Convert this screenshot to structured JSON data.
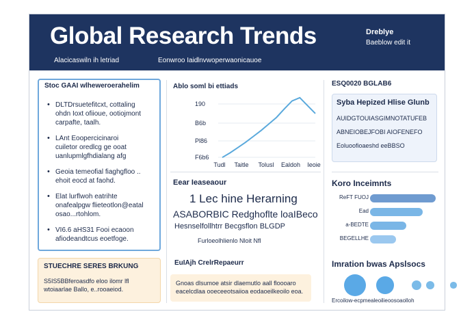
{
  "header": {
    "title": "Global Research Trends",
    "badge_top": "Dreblye",
    "badge_bottom": "Baeblow edit it",
    "sub": [
      "Alacicaswiln ih letriad",
      "Eonwroo Iaid",
      "lnvwoperwaonicauoe"
    ]
  },
  "left_card": {
    "title": "Stoc GAAI wlheweroerahelim",
    "bullets": [
      [
        "DLTDrsuetefitcxt, cottaling",
        "ohdn Ioxt ofiioue, ootiojmont",
        "carpafte, taalh."
      ],
      [
        "LAnt Eoopercicinaroi",
        "cuiletor oredlcg ge ooat",
        "uanlupmlgfhdialang afg"
      ],
      [
        "Geoia temeofial fiaghgfloo ..",
        "ehoit eocd at faohd."
      ],
      [
        "Elat lurflwoh eatrihte",
        "onafealpgw flieteotlon@eatal",
        "osao...rtohlom."
      ],
      [
        "VI6.6 aHS31 Fooi ecaoon",
        "afiodeandtcus eoetfoge."
      ]
    ]
  },
  "left_bottom": {
    "title": "STUECHRE SERES BRKUNG",
    "lines": [
      "S5IS5BBferoasdfo eloo ilomr lfl",
      "wtoiaarlae Ballo, e..rooaeiod."
    ]
  },
  "chart_data": {
    "type": "line",
    "title": "Ablo soml bi ettiads",
    "y_tick_labels": [
      "190",
      "B6b",
      "Pl86",
      "F6b6"
    ],
    "x_tick_labels": [
      "Tudl",
      "Taitle",
      "Tolusl",
      "Ealdoh",
      "Ieoie"
    ],
    "values": [
      205,
      212,
      220,
      228,
      237,
      246,
      256,
      266,
      279,
      291,
      296,
      284,
      272
    ]
  },
  "mid": {
    "title": "Eear Ieaseaour",
    "big": "1 Lec hine Herarning",
    "row2": "ASABORBIC Redghoflte loaIBeco",
    "row3": "Hesnselfollhtrr  Becgsflon  BLGDP",
    "row4": "Furloeolhlienlo Nloit   Nfl"
  },
  "mid_bottom": {
    "title": "EuIAjh CrelrRepaeurr",
    "lines": [
      "Gnoas dlsumoe atsir dlaemutlo aall floooaro",
      "eacelcdlaa ooeceeotsaiioa eodaoeilkeoilo eoa."
    ]
  },
  "right_top": {
    "title": "ESQ0020 BGLAB6",
    "box_title": "Syba Hepized Hlise Glunb",
    "lines": [
      "AUIDGTOUIASGIMNOTATUFEB",
      "ABNEIOBEJFOBI AIOFENEFO",
      "Eoluoofioaeshd eeBBSO"
    ]
  },
  "right_bars": {
    "title": "Koro Inceimnts",
    "bars": [
      {
        "label": "ReFT FUOJ",
        "value": 1.0,
        "color": "#6f9bd0"
      },
      {
        "label": "Ead",
        "value": 0.8,
        "color": "#7ab6e6"
      },
      {
        "label": "a-BEDTE",
        "value": 0.55,
        "color": "#7ab6e6"
      },
      {
        "label": "BEGELLHE",
        "value": 0.4,
        "color": "#9bc8ef"
      }
    ]
  },
  "right_bottom": {
    "title": "Imration bwas Apslsocs",
    "caption": "Ercoilow-ecpmealeoilieoosoaolloh",
    "dots": [
      1.0,
      0.8,
      0.45,
      0.4,
      0.3
    ]
  }
}
